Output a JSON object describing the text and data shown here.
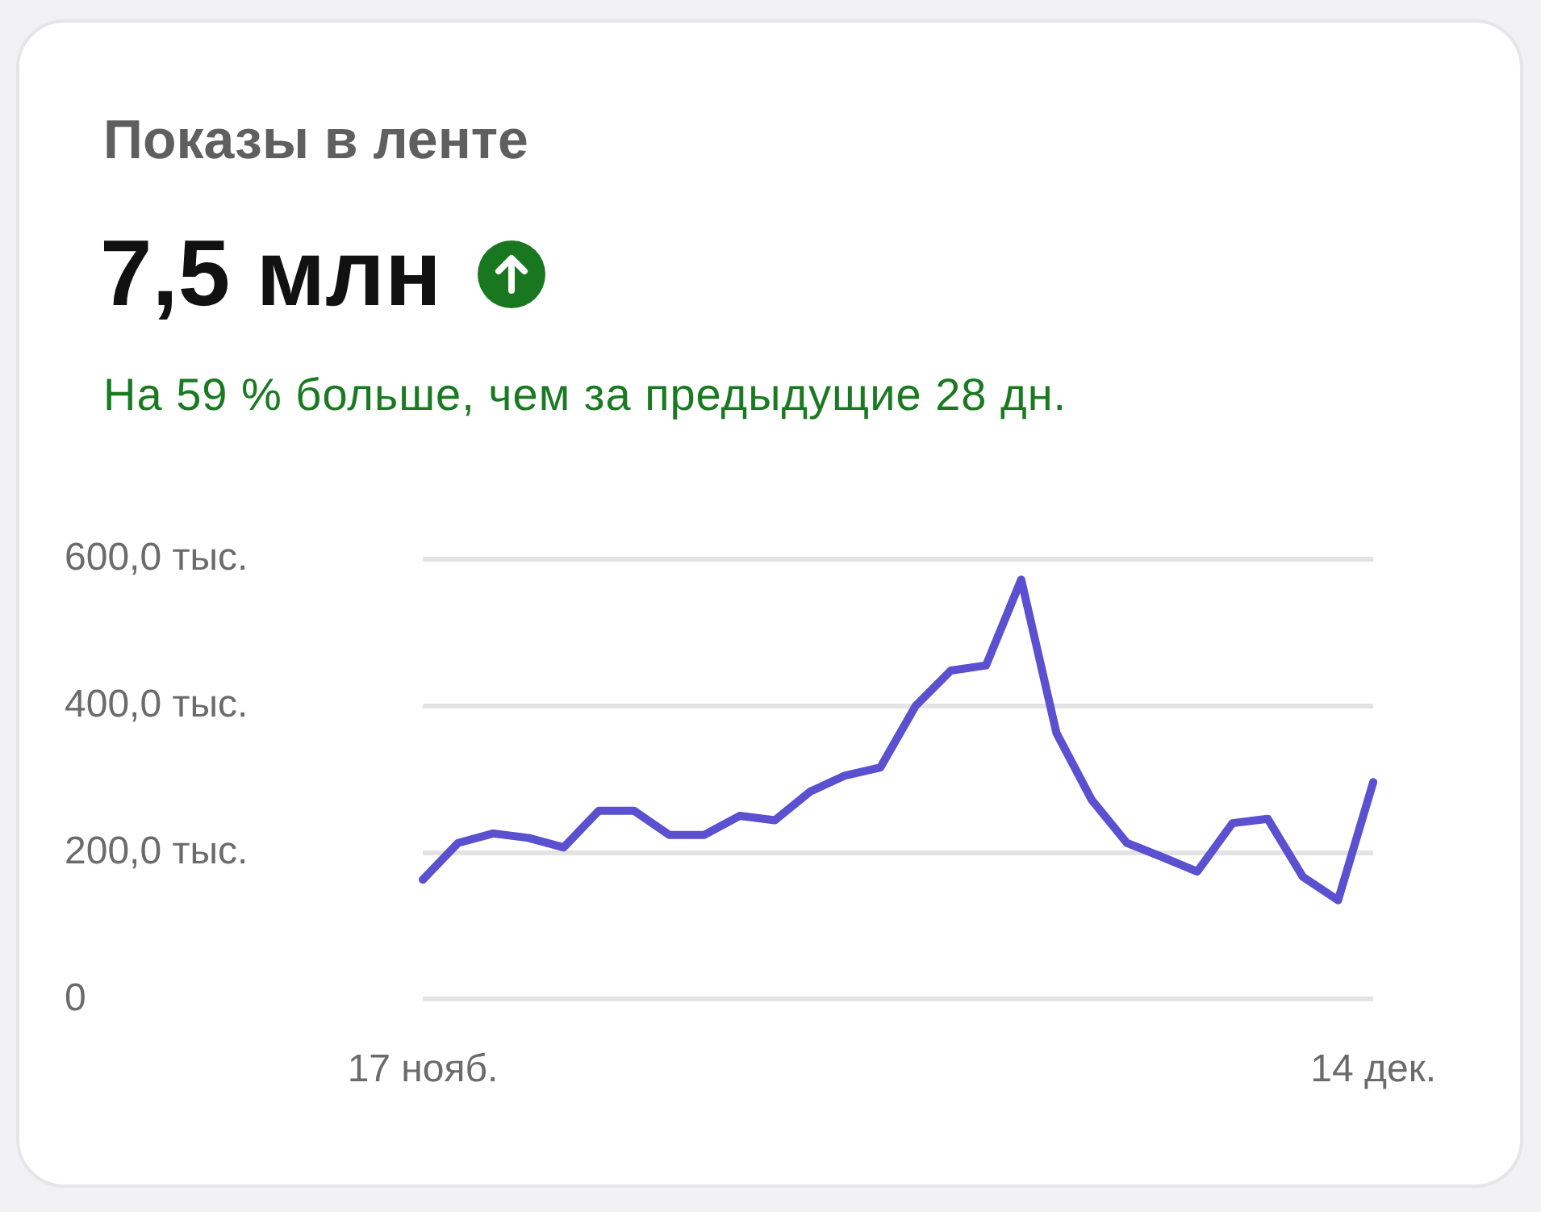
{
  "chart_data": {
    "type": "line",
    "title": "Показы в ленте",
    "subtitle": "7,5 млн",
    "annotations": [
      "На 59 % больше, чем за предыдущие 28 дн."
    ],
    "categories": [
      "17 нояб.",
      null,
      null,
      null,
      null,
      null,
      null,
      null,
      null,
      null,
      null,
      null,
      null,
      null,
      null,
      null,
      null,
      null,
      null,
      null,
      null,
      null,
      null,
      null,
      null,
      null,
      null,
      "14 дек."
    ],
    "series": [
      {
        "color": "#5a50d0",
        "values": [
          163,
          213,
          226,
          220,
          207,
          257,
          257,
          224,
          224,
          250,
          244,
          283,
          305,
          316,
          400,
          448,
          455,
          572,
          363,
          272,
          213,
          194,
          174,
          240,
          246,
          167,
          135,
          296
        ]
      }
    ],
    "ylim": [
      0,
      600
    ],
    "yticks": [
      0,
      {
        "value": 200,
        "label": "200,0 тыс."
      },
      {
        "value": 400,
        "label": "400,0 тыс."
      },
      {
        "value": 600,
        "label": "600,0 тыс."
      }
    ],
    "grid": "y",
    "legend": false,
    "marker": "none",
    "line_style": "solid"
  }
}
